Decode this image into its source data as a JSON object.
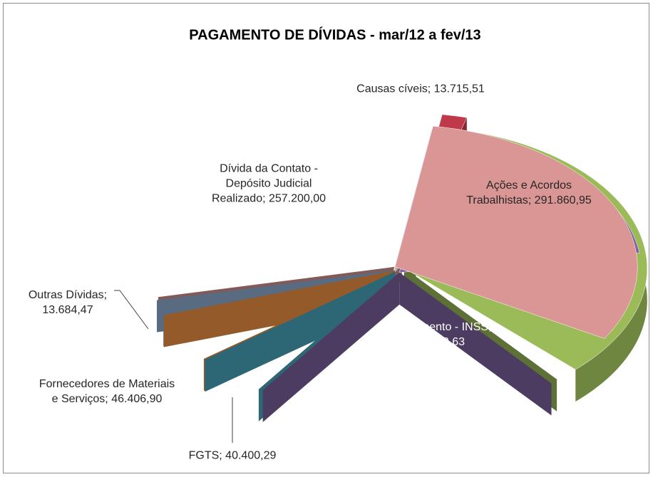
{
  "chart_data": {
    "type": "pie3d",
    "title": "PAGAMENTO DE DÍVIDAS - mar/12 a fev/13",
    "values": [
      13715.51,
      291860.95,
      169108.63,
      40400.29,
      46406.9,
      13684.47,
      257200.0
    ],
    "value_labels": [
      "Causas cíveis; 13.715,51",
      "Ações e Acordos Trabalhistas; 291.860,95",
      "Parcelamento - INSS; 169.108,63",
      "FGTS; 40.400,29",
      "Fornecedores de Materiais e Serviços; 46.406,90",
      "Outras Dívidas; 13.684,47",
      "Dívida da Contato - Depósito Judicial Realizado; 257.200,00"
    ],
    "colors": [
      "#c0394b",
      "#9bbb59",
      "#8064a2",
      "#4bacc6",
      "#f79646",
      "#95b3d7",
      "#d99694"
    ]
  }
}
